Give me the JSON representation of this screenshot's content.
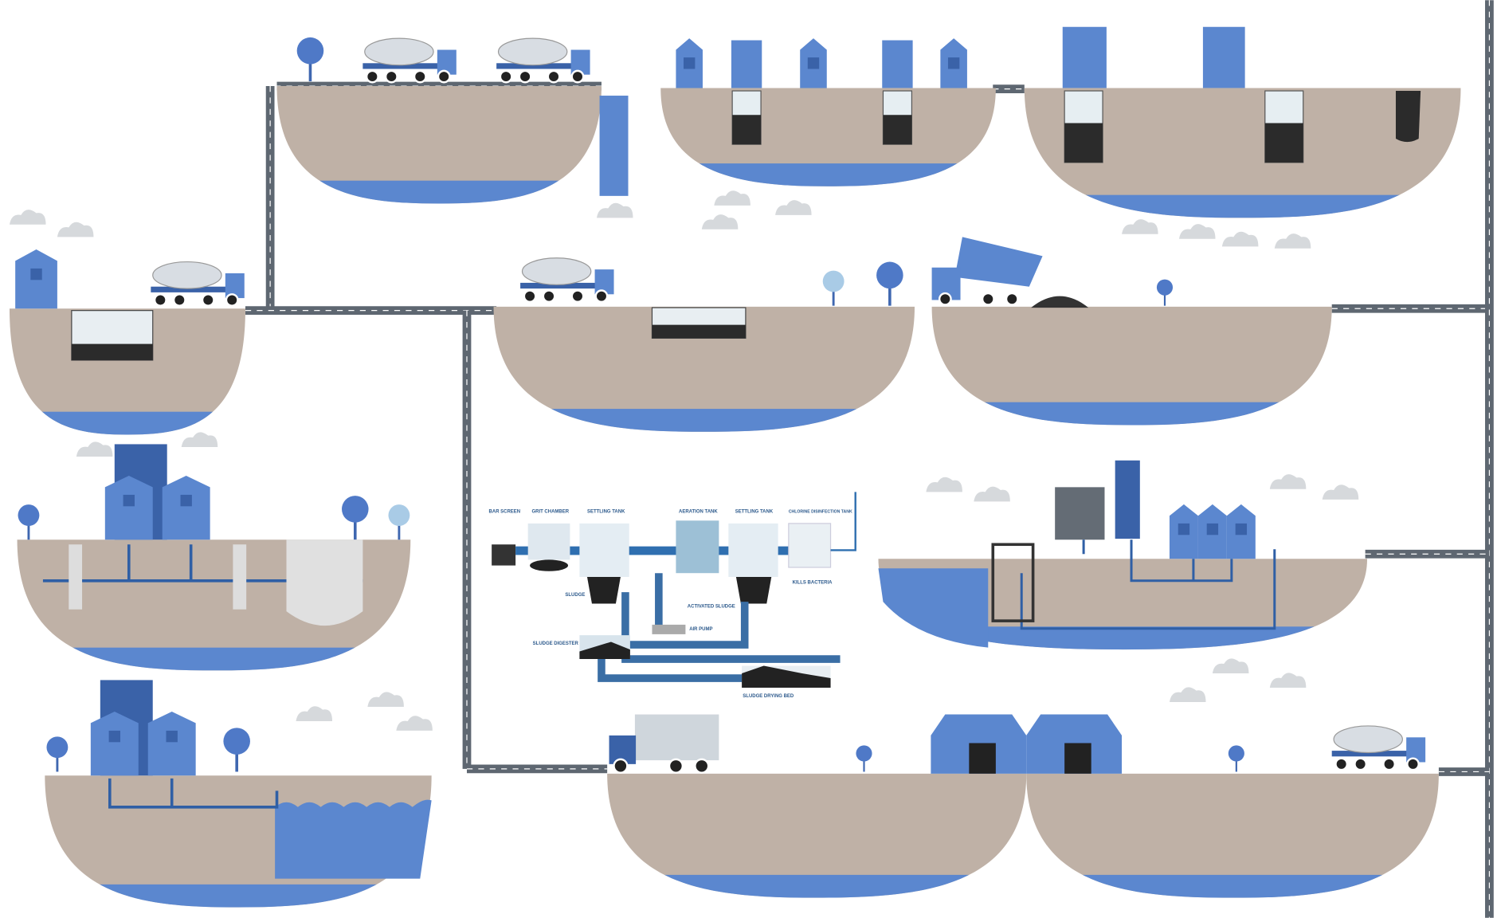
{
  "plant_labels": [
    "BAR SCREEN",
    "GRIT CHAMBER",
    "SETTLING TANK",
    "AERATION TANK",
    "SETTLING TANK",
    "CHLORINE DISINFECTION TANK",
    "SLUDGE",
    "ACTIVATED SLUDGE",
    "AIR PUMP",
    "SLUDGE DIGESTER",
    "SLUDGE DRYING BED",
    "KILLS BACTERIA"
  ]
}
